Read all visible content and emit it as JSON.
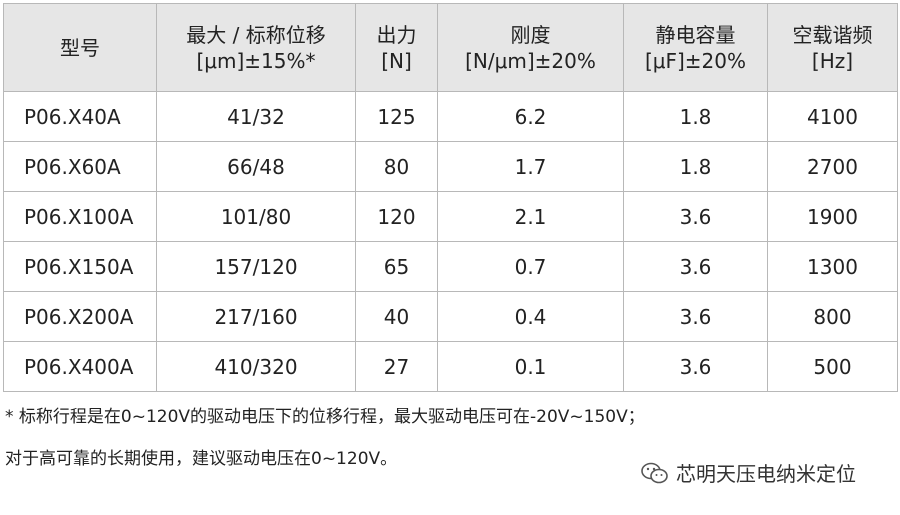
{
  "table": {
    "header": [
      [
        "型号"
      ],
      [
        "最大 / 标称位移",
        "[μm]±15%*"
      ],
      [
        "出力",
        "[N]"
      ],
      [
        "刚度",
        "[N/μm]±20%"
      ],
      [
        "静电容量",
        "[μF]±20%"
      ],
      [
        "空载谐频",
        "[Hz]"
      ]
    ],
    "rows": [
      [
        "P06.X40A",
        "41/32",
        "125",
        "6.2",
        "1.8",
        "4100"
      ],
      [
        "P06.X60A",
        "66/48",
        "80",
        "1.7",
        "1.8",
        "2700"
      ],
      [
        "P06.X100A",
        "101/80",
        "120",
        "2.1",
        "3.6",
        "1900"
      ],
      [
        "P06.X150A",
        "157/120",
        "65",
        "0.7",
        "3.6",
        "1300"
      ],
      [
        "P06.X200A",
        "217/160",
        "40",
        "0.4",
        "3.6",
        "800"
      ],
      [
        "P06.X400A",
        "410/320",
        "27",
        "0.1",
        "3.6",
        "500"
      ]
    ]
  },
  "notes": [
    "* 标称行程是在0~120V的驱动电压下的位移行程，最大驱动电压可在-20V~150V；",
    "对于高可靠的长期使用，建议驱动电压在0~120V。"
  ],
  "watermark": "芯明天压电纳米定位"
}
